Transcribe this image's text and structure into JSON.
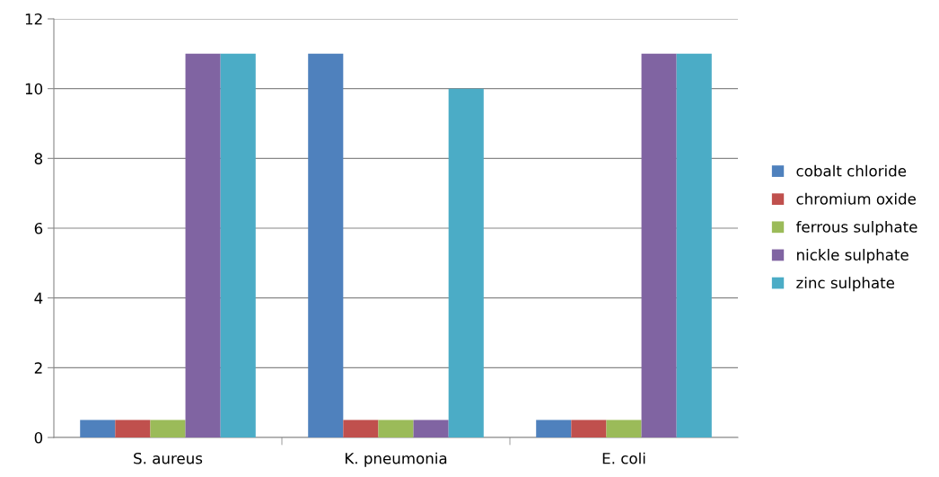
{
  "chart_data": {
    "type": "bar",
    "categories": [
      "S. aureus",
      "K. pneumonia",
      "E. coli"
    ],
    "series": [
      {
        "name": "cobalt chloride",
        "color": "#4f81bd",
        "values": [
          0.5,
          11,
          0.5
        ]
      },
      {
        "name": "chromium oxide",
        "color": "#c0504d",
        "values": [
          0.5,
          0.5,
          0.5
        ]
      },
      {
        "name": "ferrous sulphate",
        "color": "#9bbb59",
        "values": [
          0.5,
          0.5,
          0.5
        ]
      },
      {
        "name": "nickle sulphate",
        "color": "#8064a2",
        "values": [
          11,
          0.5,
          11
        ]
      },
      {
        "name": "zinc sulphate",
        "color": "#4bacc6",
        "values": [
          11,
          10,
          11
        ]
      }
    ],
    "ylim": [
      0,
      12
    ],
    "yticks": [
      0,
      2,
      4,
      6,
      8,
      10,
      12
    ],
    "grid": "y",
    "legend": "right"
  }
}
